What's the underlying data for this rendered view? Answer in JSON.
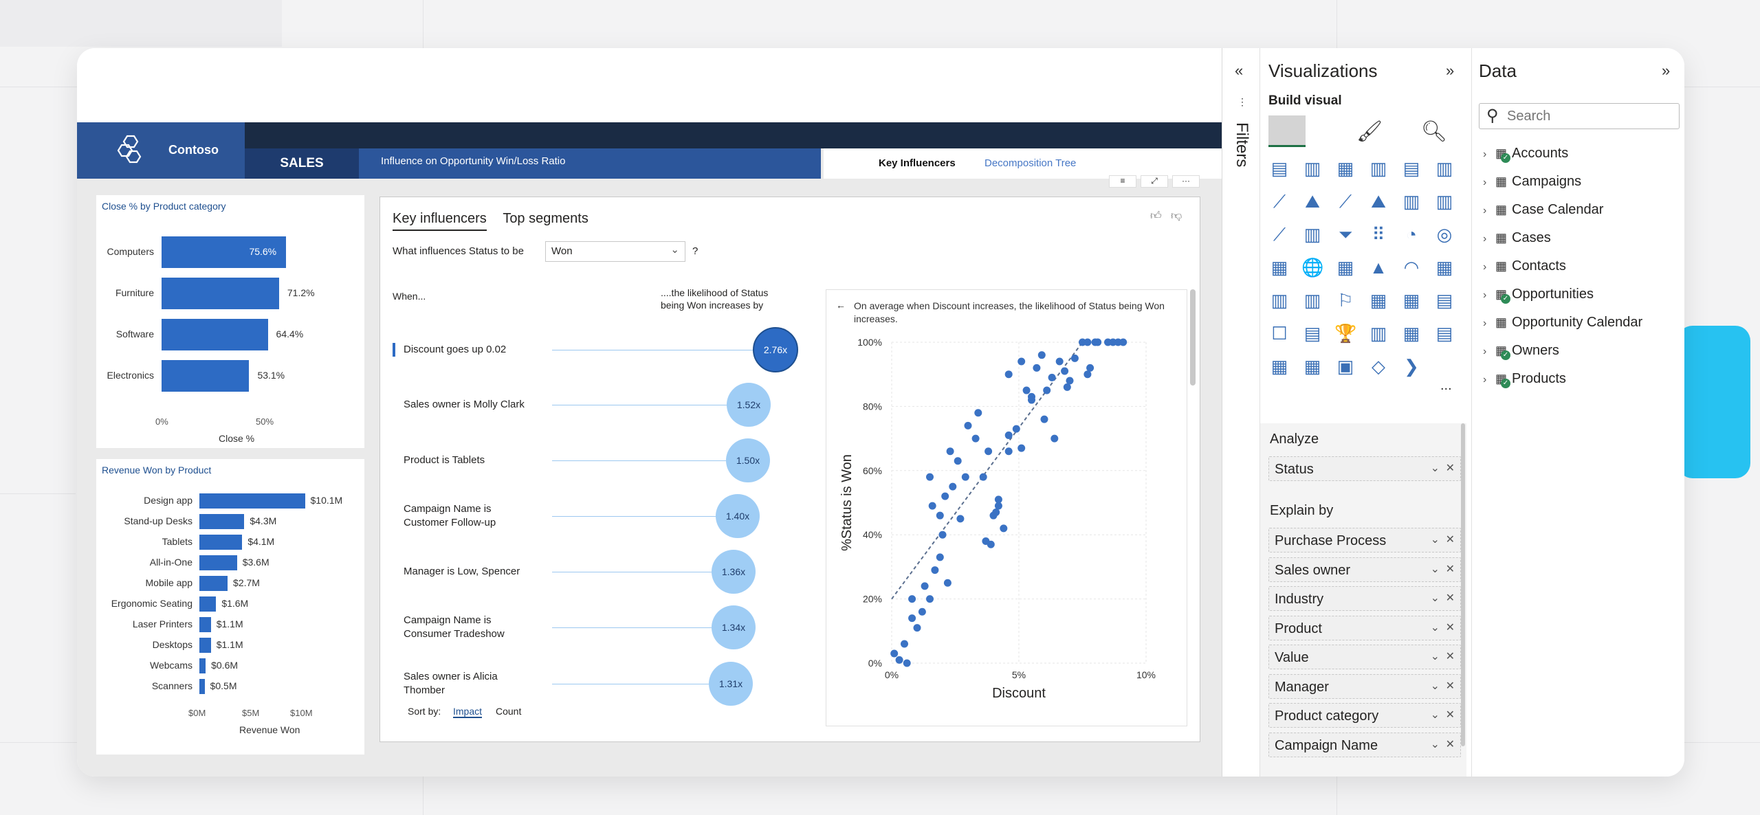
{
  "header": {
    "company": "Contoso",
    "section": "SALES",
    "subtitle": "Influence on Opportunity Win/Loss Ratio",
    "tab_active": "Key Influencers",
    "tab_other": "Decomposition Tree"
  },
  "close_chart": {
    "title": "Close % by Product category",
    "xlabel": "Close %",
    "ticks": [
      "0%",
      "50%"
    ]
  },
  "revenue_chart": {
    "title": "Revenue Won by Product",
    "xlabel": "Revenue Won",
    "ticks": [
      "$0M",
      "$5M",
      "$10M"
    ]
  },
  "chart_data": [
    {
      "type": "bar",
      "title": "Close % by Product category",
      "categories": [
        "Computers",
        "Furniture",
        "Software",
        "Electronics"
      ],
      "values": [
        75.6,
        71.2,
        64.4,
        53.1
      ],
      "labels": [
        "75.6%",
        "71.2%",
        "64.4%",
        "53.1%"
      ],
      "xlabel": "Close %",
      "xlim": [
        0,
        100
      ]
    },
    {
      "type": "bar",
      "title": "Revenue Won by Product",
      "categories": [
        "Design app",
        "Stand-up Desks",
        "Tablets",
        "All-in-One",
        "Mobile app",
        "Ergonomic Seating",
        "Laser Printers",
        "Desktops",
        "Webcams",
        "Scanners"
      ],
      "values": [
        10.1,
        4.3,
        4.1,
        3.6,
        2.7,
        1.6,
        1.1,
        1.1,
        0.6,
        0.5
      ],
      "labels": [
        "$10.1M",
        "$4.3M",
        "$4.1M",
        "$3.6M",
        "$2.7M",
        "$1.6M",
        "$1.1M",
        "$1.1M",
        "$0.6M",
        "$0.5M"
      ],
      "xlabel": "Revenue Won",
      "xlim": [
        0,
        11
      ]
    },
    {
      "type": "scatter",
      "xlabel": "Discount",
      "ylabel": "%Status is Won",
      "xlim": [
        0,
        10
      ],
      "ylim": [
        0,
        100
      ],
      "xticks": [
        "0%",
        "5%",
        "10%"
      ],
      "yticks": [
        "0%",
        "20%",
        "40%",
        "60%",
        "80%",
        "100%"
      ],
      "trendline": [
        [
          0,
          20
        ],
        [
          7.5,
          100
        ]
      ],
      "points": [
        [
          0.1,
          3
        ],
        [
          0.5,
          6
        ],
        [
          0.3,
          1
        ],
        [
          0.6,
          0
        ],
        [
          0.8,
          14
        ],
        [
          0.8,
          20
        ],
        [
          1.0,
          11
        ],
        [
          1.2,
          16
        ],
        [
          1.5,
          20
        ],
        [
          1.7,
          29
        ],
        [
          1.9,
          33
        ],
        [
          2.2,
          25
        ],
        [
          2.3,
          66
        ],
        [
          1.3,
          24
        ],
        [
          1.5,
          58
        ],
        [
          1.6,
          49
        ],
        [
          1.9,
          46
        ],
        [
          2.0,
          40
        ],
        [
          2.1,
          52
        ],
        [
          2.4,
          55
        ],
        [
          2.6,
          63
        ],
        [
          2.7,
          45
        ],
        [
          2.9,
          58
        ],
        [
          3.0,
          74
        ],
        [
          3.3,
          70
        ],
        [
          3.4,
          78
        ],
        [
          3.6,
          58
        ],
        [
          3.8,
          66
        ],
        [
          3.7,
          38
        ],
        [
          3.9,
          37
        ],
        [
          4.1,
          47
        ],
        [
          4.2,
          49
        ],
        [
          4.4,
          42
        ],
        [
          4.6,
          71
        ],
        [
          4.9,
          73
        ],
        [
          5.1,
          67
        ],
        [
          5.3,
          85
        ],
        [
          5.5,
          83
        ],
        [
          5.7,
          92
        ],
        [
          5.9,
          96
        ],
        [
          6.1,
          85
        ],
        [
          6.3,
          89
        ],
        [
          6.6,
          94
        ],
        [
          6.8,
          91
        ],
        [
          6.9,
          86
        ],
        [
          7.0,
          88
        ],
        [
          7.2,
          95
        ],
        [
          7.5,
          100
        ],
        [
          7.7,
          100
        ],
        [
          8.0,
          100
        ],
        [
          8.1,
          100
        ],
        [
          8.5,
          100
        ],
        [
          8.7,
          100
        ],
        [
          8.9,
          100
        ],
        [
          9.1,
          100
        ],
        [
          6.4,
          70
        ],
        [
          6.0,
          76
        ],
        [
          5.5,
          82
        ],
        [
          5.1,
          94
        ],
        [
          4.6,
          66
        ],
        [
          4.2,
          51
        ],
        [
          4.6,
          90
        ],
        [
          4.0,
          46
        ],
        [
          7.8,
          92
        ],
        [
          7.7,
          90
        ]
      ]
    }
  ],
  "key_influencers": {
    "tab_active": "Key influencers",
    "tab_other": "Top segments",
    "question": "What influences Status to be",
    "value": "Won",
    "question_mark": "?",
    "col_when": "When...",
    "col_likelihood_1": "....the likelihood of Status",
    "col_likelihood_2": "being Won increases by",
    "rows": [
      {
        "label": "Discount goes up 0.02",
        "value": "2.76x"
      },
      {
        "label": "Sales owner is Molly Clark",
        "value": "1.52x"
      },
      {
        "label": "Product is Tablets",
        "value": "1.50x"
      },
      {
        "label": "Campaign Name is Customer Follow-up",
        "value": "1.40x"
      },
      {
        "label": "Manager is Low, Spencer",
        "value": "1.36x"
      },
      {
        "label": "Campaign Name is Consumer Tradeshow",
        "value": "1.34x"
      },
      {
        "label": "Sales owner is Alicia Thomber",
        "value": "1.31x"
      }
    ],
    "sort_by": "Sort by:",
    "sort_impact": "Impact",
    "sort_count": "Count",
    "detail_text": "On average when Discount increases, the likelihood of Status being Won increases."
  },
  "filters_label": "Filters",
  "visualizations": {
    "title": "Visualizations",
    "build_visual": "Build visual",
    "more": "...",
    "analyze_label": "Analyze",
    "analyze_field": "Status",
    "explain_label": "Explain by",
    "explain_fields": [
      "Purchase Process",
      "Sales owner",
      "Industry",
      "Product",
      "Value",
      "Manager",
      "Product category",
      "Campaign Name"
    ]
  },
  "data_pane": {
    "title": "Data",
    "search_placeholder": "Search",
    "tables": [
      {
        "name": "Accounts",
        "checked": true
      },
      {
        "name": "Campaigns",
        "checked": false
      },
      {
        "name": "Case Calendar",
        "checked": false
      },
      {
        "name": "Cases",
        "checked": false
      },
      {
        "name": "Contacts",
        "checked": false
      },
      {
        "name": "Opportunities",
        "checked": true
      },
      {
        "name": "Opportunity Calendar",
        "checked": false
      },
      {
        "name": "Owners",
        "checked": true
      },
      {
        "name": "Products",
        "checked": true
      }
    ]
  },
  "colors": {
    "accent": "#2d6bc4",
    "header_dark": "#1a2b44",
    "header_blue": "#2c569b",
    "bubble_light": "#9fcdf5",
    "bubble_dark": "#2d6bc4",
    "cyan": "#27c2f1",
    "check_green": "#2e8b57"
  }
}
